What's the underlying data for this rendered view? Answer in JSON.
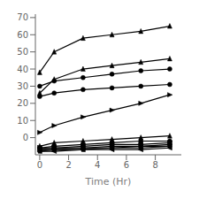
{
  "chart_data": {
    "type": "line",
    "xlabel": "Time (Hr)",
    "x": [
      0,
      1,
      3,
      5,
      7,
      9
    ],
    "xlim": [
      -0.3,
      9.8
    ],
    "ylim": [
      -10,
      72
    ],
    "xticks": [
      0,
      2,
      4,
      6,
      8
    ],
    "yticks": [
      0,
      10,
      20,
      30,
      40,
      50,
      60,
      70
    ],
    "grid": false,
    "series": [
      {
        "color": "black",
        "marker": "triangle-up",
        "values": [
          38,
          50,
          58,
          60,
          62,
          65
        ]
      },
      {
        "color": "black",
        "marker": "triangle-up",
        "values": [
          26,
          34,
          40,
          42,
          44,
          46
        ]
      },
      {
        "color": "black",
        "marker": "circle",
        "values": [
          30,
          33,
          35,
          37,
          39,
          40
        ]
      },
      {
        "color": "black",
        "marker": "circle",
        "values": [
          24,
          26,
          28,
          29,
          30,
          31
        ]
      },
      {
        "color": "black",
        "marker": "triangle-right",
        "values": [
          3,
          7,
          12,
          16,
          20,
          25
        ]
      },
      {
        "color": "black",
        "marker": "triangle-up",
        "values": [
          -5,
          -3,
          -2,
          -1,
          0,
          1
        ]
      },
      {
        "color": "black",
        "marker": "circle",
        "values": [
          -6,
          -5,
          -4,
          -3,
          -2,
          -2
        ]
      },
      {
        "color": "black",
        "marker": "square",
        "values": [
          -6,
          -6,
          -5,
          -4,
          -4,
          -3
        ]
      },
      {
        "color": "black",
        "marker": "diamond",
        "values": [
          -7,
          -6,
          -6,
          -5,
          -5,
          -4
        ]
      },
      {
        "color": "black",
        "marker": "triangle-down",
        "values": [
          -7,
          -7,
          -6,
          -6,
          -5,
          -5
        ]
      },
      {
        "color": "black",
        "marker": "pentagon",
        "values": [
          -8,
          -7,
          -7,
          -6,
          -6,
          -5
        ]
      },
      {
        "color": "black",
        "marker": "triangle-left",
        "values": [
          -8,
          -8,
          -7,
          -7,
          -7,
          -6
        ]
      }
    ]
  }
}
